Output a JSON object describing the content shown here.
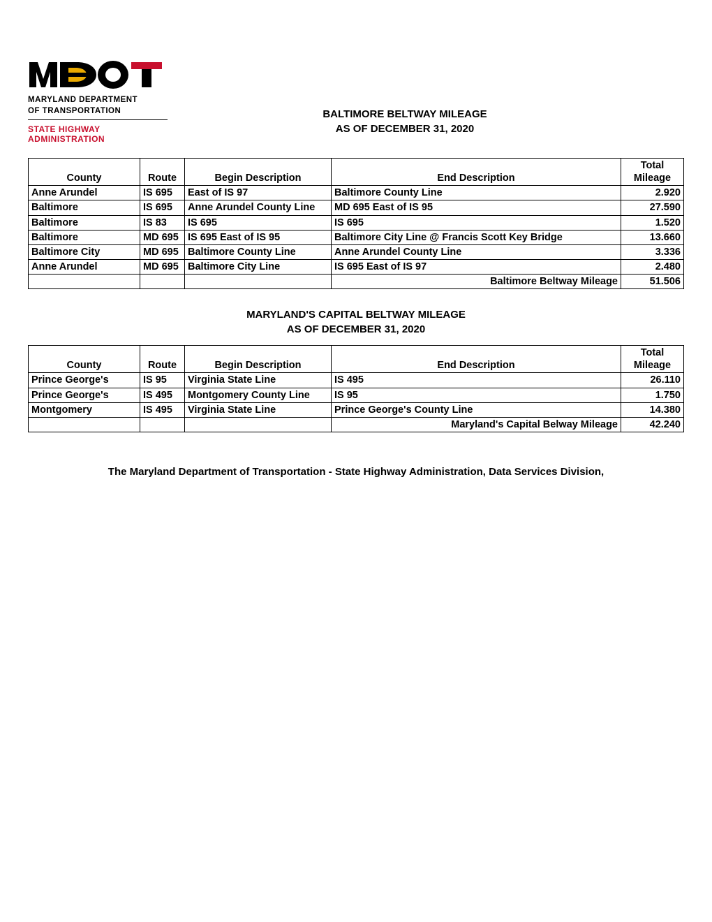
{
  "logo": {
    "dept_line1": "MARYLAND DEPARTMENT",
    "dept_line2": "OF TRANSPORTATION",
    "sha_line1": "STATE HIGHWAY",
    "sha_line2": "ADMINISTRATION",
    "colors": {
      "black": "#000000",
      "gold": "#eaaa00",
      "red": "#c8102e"
    }
  },
  "section1": {
    "title": "BALTIMORE BELTWAY MILEAGE",
    "subtitle": "AS OF DECEMBER 31, 2020",
    "columns": [
      "County",
      "Route",
      "Begin Description",
      "End Description",
      "Total Mileage"
    ],
    "rows": [
      [
        "Anne Arundel",
        "IS 695",
        "East of IS 97",
        "Baltimore County Line",
        "2.920"
      ],
      [
        "Baltimore",
        "IS 695",
        "Anne Arundel County Line",
        "MD 695 East of IS 95",
        "27.590"
      ],
      [
        "Baltimore",
        "IS 83",
        "IS 695",
        "IS 695",
        "1.520"
      ],
      [
        "Baltimore",
        "MD 695",
        "IS 695 East of IS 95",
        "Baltimore City Line @ Francis Scott Key Bridge",
        "13.660"
      ],
      [
        "Baltimore City",
        "MD 695",
        "Baltimore County Line",
        "Anne Arundel County Line",
        "3.336"
      ],
      [
        "Anne Arundel",
        "MD 695",
        "Baltimore City Line",
        "IS 695 East of IS 97",
        "2.480"
      ]
    ],
    "total_label": "Baltimore Beltway Mileage",
    "total_value": "51.506"
  },
  "section2": {
    "title": "MARYLAND'S CAPITAL BELTWAY MILEAGE",
    "subtitle": "AS OF DECEMBER 31, 2020",
    "columns": [
      "County",
      "Route",
      "Begin Description",
      "End Description",
      "Total Mileage"
    ],
    "rows": [
      [
        "Prince George's",
        "IS 95",
        "Virginia State Line",
        "IS 495",
        "26.110"
      ],
      [
        "Prince George's",
        "IS 495",
        "Montgomery County Line",
        "IS 95",
        "1.750"
      ],
      [
        "Montgomery",
        "IS 495",
        "Virginia State Line",
        "Prince George's County Line",
        "14.380"
      ]
    ],
    "total_label": "Maryland's Capital Belway Mileage",
    "total_value": "42.240"
  },
  "footer": "The Maryland Department of Transportation - State Highway Administration, Data Services Division,"
}
